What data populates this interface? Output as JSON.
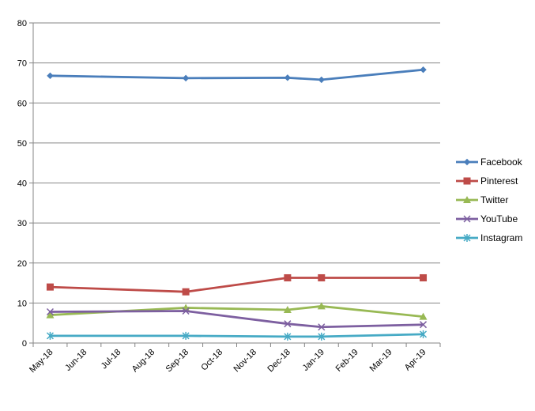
{
  "chart_data": {
    "type": "line",
    "title": "",
    "xlabel": "",
    "ylabel": "",
    "x_ticks": [
      "May-18",
      "Jun-18",
      "Jul-18",
      "Aug-18",
      "Sep-18",
      "Oct-18",
      "Nov-18",
      "Dec-18",
      "Jan-19",
      "Feb-19",
      "Mar-19",
      "Apr-19"
    ],
    "y_ticks": [
      0,
      10,
      20,
      30,
      40,
      50,
      60,
      70,
      80
    ],
    "ylim": [
      0,
      80
    ],
    "grid": "horizontal",
    "legend_position": "right",
    "series": [
      {
        "name": "Facebook",
        "color": "#4a7ebb",
        "marker": "diamond",
        "points": [
          {
            "x": "May-18",
            "y": 66.8
          },
          {
            "x": "Sep-18",
            "y": 66.2
          },
          {
            "x": "Dec-18",
            "y": 66.3
          },
          {
            "x": "Jan-19",
            "y": 65.8
          },
          {
            "x": "Apr-19",
            "y": 68.3
          }
        ]
      },
      {
        "name": "Pinterest",
        "color": "#be4b48",
        "marker": "square",
        "points": [
          {
            "x": "May-18",
            "y": 14.0
          },
          {
            "x": "Sep-18",
            "y": 12.8
          },
          {
            "x": "Dec-18",
            "y": 16.3
          },
          {
            "x": "Jan-19",
            "y": 16.3
          },
          {
            "x": "Apr-19",
            "y": 16.3
          }
        ]
      },
      {
        "name": "Twitter",
        "color": "#98b954",
        "marker": "triangle",
        "points": [
          {
            "x": "May-18",
            "y": 7.0
          },
          {
            "x": "Sep-18",
            "y": 8.8
          },
          {
            "x": "Dec-18",
            "y": 8.3
          },
          {
            "x": "Jan-19",
            "y": 9.2
          },
          {
            "x": "Apr-19",
            "y": 6.6
          }
        ]
      },
      {
        "name": "YouTube",
        "color": "#7d5fa0",
        "marker": "x",
        "points": [
          {
            "x": "May-18",
            "y": 7.8
          },
          {
            "x": "Sep-18",
            "y": 8.0
          },
          {
            "x": "Dec-18",
            "y": 4.8
          },
          {
            "x": "Jan-19",
            "y": 4.0
          },
          {
            "x": "Apr-19",
            "y": 4.6
          }
        ]
      },
      {
        "name": "Instagram",
        "color": "#46aac5",
        "marker": "star",
        "points": [
          {
            "x": "May-18",
            "y": 1.8
          },
          {
            "x": "Sep-18",
            "y": 1.8
          },
          {
            "x": "Dec-18",
            "y": 1.6
          },
          {
            "x": "Jan-19",
            "y": 1.6
          },
          {
            "x": "Apr-19",
            "y": 2.2
          }
        ]
      }
    ]
  }
}
